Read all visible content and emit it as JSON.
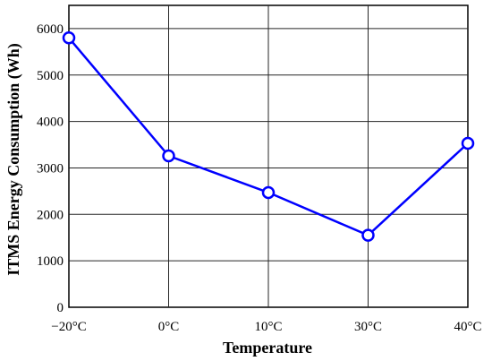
{
  "chart_data": {
    "type": "line",
    "categories": [
      "−20°C",
      "0°C",
      "10°C",
      "30°C",
      "40°C"
    ],
    "series": [
      {
        "values": [
          5800,
          3260,
          2470,
          1550,
          3530
        ]
      }
    ],
    "title": "",
    "xlabel": "Temperature",
    "ylabel": "ITMS Energy Consumption (Wh)",
    "ylim": [
      0,
      6500
    ],
    "yticks": [
      0,
      1000,
      2000,
      3000,
      4000,
      5000,
      6000
    ],
    "grid": true,
    "legend": "none",
    "marker": "open-circle"
  },
  "colors": {
    "series": "#0000ff",
    "grid": "#262626",
    "axis": "#000000",
    "background": "#ffffff"
  }
}
